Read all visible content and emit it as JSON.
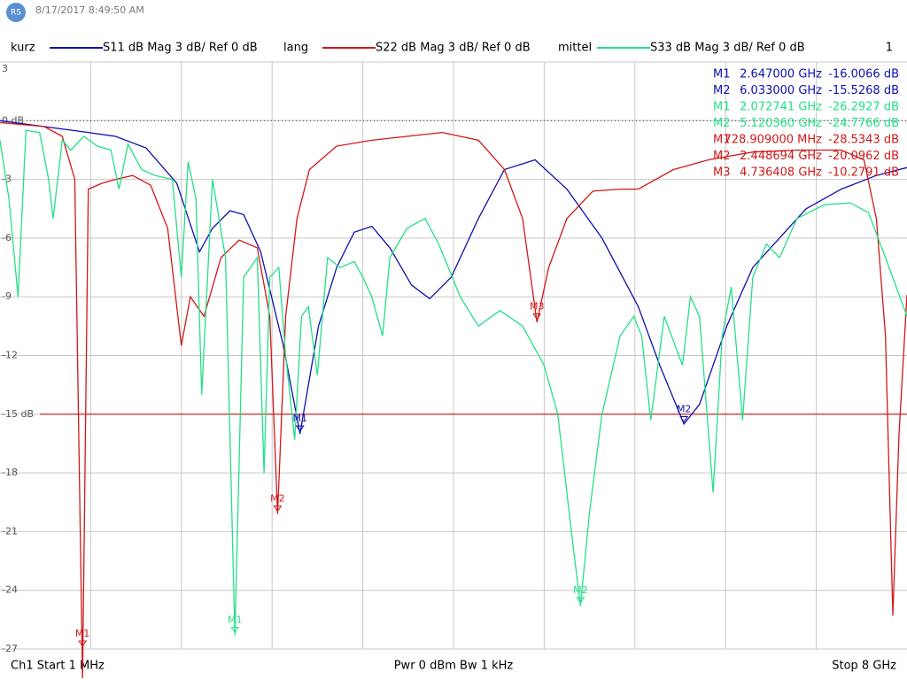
{
  "chart_data": {
    "type": "line",
    "date": "8/17/2017 8:49:50 AM",
    "channel": "1",
    "footer": {
      "left": "Ch1 Start 1 MHz",
      "center": "Pwr 0 dBm Bw 1 kHz",
      "right": "Stop 8 GHz"
    },
    "xlim": [
      0.001,
      8
    ],
    "ylim": [
      -27,
      3
    ],
    "yticks": [
      3,
      {
        "value": 0,
        "label": "0 dB"
      },
      -3,
      -6,
      -9,
      -12,
      {
        "value": -15,
        "label": "-15 dB"
      },
      -18,
      -21,
      -24,
      -27
    ],
    "ref_line": 0,
    "limit_line": -15,
    "grid": true,
    "series": [
      {
        "name": "kurz",
        "trace": "S11  dB Mag  3 dB/ Ref 0 dB",
        "color": "#1010b0",
        "x": [
          0.001,
          0.78,
          1.02,
          1.29,
          1.56,
          1.76,
          1.875,
          2.03,
          2.15,
          2.3,
          2.5,
          2.647,
          2.81,
          2.97,
          3.125,
          3.28,
          3.44,
          3.63,
          3.79,
          3.98,
          4.22,
          4.45,
          4.72,
          5.0,
          5.31,
          5.63,
          5.82,
          6.033,
          6.17,
          6.41,
          6.64,
          6.875,
          7.11,
          7.42,
          7.73,
          8
        ],
        "values": [
          0,
          -0.6,
          -0.8,
          -1.4,
          -3.2,
          -6.7,
          -5.5,
          -4.6,
          -4.8,
          -6.7,
          -11.5,
          -16.0,
          -10.5,
          -7.5,
          -5.7,
          -5.4,
          -6.5,
          -8.4,
          -9.1,
          -8,
          -5,
          -2.5,
          -2.0,
          -3.5,
          -6,
          -9.5,
          -12.5,
          -15.5,
          -14.5,
          -10.5,
          -7.5,
          -6.0,
          -4.5,
          -3.5,
          -2.8,
          -2.4
        ],
        "markers": [
          {
            "name": "M1",
            "freq": {
              "value": 2.647,
              "label": "2.647000 GHz"
            },
            "level": {
              "value": -16.0066,
              "label": "-16.0066 dB"
            }
          },
          {
            "name": "M2",
            "freq": {
              "value": 6.033,
              "label": "6.033000 GHz"
            },
            "level": {
              "value": -15.5268,
              "label": "-15.5268 dB"
            }
          }
        ]
      },
      {
        "name": "lang",
        "trace": "S22  dB Mag  3 dB/ Ref 0 dB",
        "color": "#d01818",
        "x": [
          0.001,
          0.39,
          0.55,
          0.66,
          0.729,
          0.78,
          0.9,
          1.02,
          1.17,
          1.33,
          1.48,
          1.6,
          1.68,
          1.8,
          1.95,
          2.11,
          2.27,
          2.38,
          2.449,
          2.52,
          2.62,
          2.73,
          2.97,
          3.28,
          3.59,
          3.9,
          4.22,
          4.45,
          4.61,
          4.736,
          4.84,
          5.0,
          5.23,
          5.47,
          5.63,
          5.94,
          6.25,
          6.64,
          7.03,
          7.42,
          7.62,
          7.73,
          7.81,
          7.875,
          7.93,
          8
        ],
        "values": [
          -0.1,
          -0.3,
          -0.8,
          -3,
          -28.5,
          -3.5,
          -3.2,
          -3.0,
          -2.8,
          -3.3,
          -5.5,
          -11.5,
          -9,
          -10,
          -7,
          -6.1,
          -6.5,
          -10,
          -20.1,
          -10,
          -5,
          -2.5,
          -1.3,
          -1.0,
          -0.8,
          -0.6,
          -1.0,
          -2.5,
          -5,
          -10.3,
          -7.5,
          -5,
          -3.6,
          -3.5,
          -3.5,
          -2.5,
          -2.0,
          -1.6,
          -1.5,
          -1.5,
          -2.0,
          -5,
          -11,
          -25.3,
          -16,
          -8.9
        ],
        "markers": [
          {
            "name": "M1",
            "freq": {
              "value": 0.728909,
              "label": "728.909000 MHz"
            },
            "level": {
              "value": -28.5343,
              "label": "-28.5343 dB"
            }
          },
          {
            "name": "M2",
            "freq": {
              "value": 2.448694,
              "label": "2.448694 GHz"
            },
            "level": {
              "value": -20.0962,
              "label": "-20.0962 dB"
            }
          },
          {
            "name": "M3",
            "freq": {
              "value": 4.736408,
              "label": "4.736408 GHz"
            },
            "level": {
              "value": -10.2791,
              "label": "-10.2791 dB"
            }
          }
        ]
      },
      {
        "name": "mittel",
        "trace": "S33  dB Mag  3 dB/ Ref 0 dB",
        "color": "#22e088",
        "x": [
          0.001,
          0.08,
          0.16,
          0.23,
          0.35,
          0.43,
          0.47,
          0.55,
          0.625,
          0.74,
          0.86,
          0.98,
          1.05,
          1.13,
          1.25,
          1.37,
          1.52,
          1.6,
          1.66,
          1.73,
          1.78,
          1.875,
          1.99,
          2.073,
          2.15,
          2.27,
          2.33,
          2.38,
          2.46,
          2.52,
          2.6,
          2.66,
          2.72,
          2.8,
          2.89,
          3.0,
          3.125,
          3.2,
          3.28,
          3.375,
          3.44,
          3.59,
          3.75,
          3.87,
          4.06,
          4.22,
          4.41,
          4.61,
          4.8,
          4.92,
          5.04,
          5.12,
          5.2,
          5.31,
          5.47,
          5.59,
          5.66,
          5.74,
          5.86,
          6.02,
          6.09,
          6.17,
          6.29,
          6.37,
          6.45,
          6.55,
          6.64,
          6.76,
          6.875,
          7.03,
          7.27,
          7.5,
          7.66,
          7.81,
          8
        ],
        "values": [
          -1,
          -4,
          -9,
          -0.5,
          -0.6,
          -3,
          -5,
          -1,
          -1.5,
          -0.8,
          -1.3,
          -1.5,
          -3.5,
          -1.2,
          -2.5,
          -2.8,
          -3,
          -8,
          -2.1,
          -4,
          -14,
          -3,
          -7,
          -26.3,
          -8,
          -7,
          -18,
          -8,
          -7.5,
          -12,
          -16.3,
          -10,
          -9.5,
          -13,
          -7,
          -7.5,
          -7.2,
          -8,
          -9.0,
          -11,
          -7,
          -5.5,
          -5,
          -6.3,
          -9,
          -10.5,
          -9.7,
          -10.5,
          -12.5,
          -15,
          -21,
          -24.8,
          -20,
          -15,
          -11,
          -10,
          -11,
          -15.3,
          -10,
          -12.5,
          -9,
          -10,
          -19,
          -11,
          -8.5,
          -15.3,
          -8,
          -6.3,
          -7,
          -5,
          -4.3,
          -4.2,
          -4.7,
          -7,
          -10
        ],
        "markers": [
          {
            "name": "M1",
            "freq": {
              "value": 2.072741,
              "label": "2.072741 GHz"
            },
            "level": {
              "value": -26.2927,
              "label": "-26.2927 dB"
            }
          },
          {
            "name": "M2",
            "freq": {
              "value": 5.12036,
              "label": "5.120360 GHz"
            },
            "level": {
              "value": -24.7766,
              "label": "-24.7766 dB"
            }
          }
        ]
      }
    ]
  }
}
